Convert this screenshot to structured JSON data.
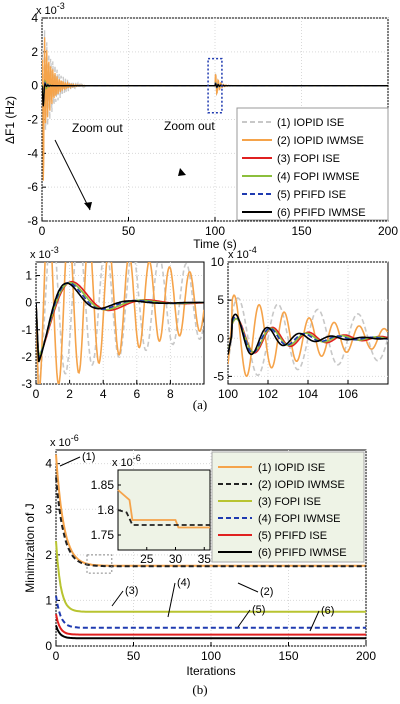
{
  "panel_a_label": "(a)",
  "panel_b_label": "(b)",
  "chart_data": [
    {
      "id": "a-main",
      "type": "line",
      "ylabel": "ΔF1 (Hz)",
      "xlabel": "Time (s)",
      "yexp": "x 10-3",
      "xlim": [
        0,
        200
      ],
      "ylim": [
        -8,
        4
      ],
      "xticks": [
        "0",
        "50",
        "100",
        "150",
        "200"
      ],
      "yticks": [
        "-8",
        "-6",
        "-4",
        "-2",
        "0",
        "2",
        "4"
      ],
      "grid": true,
      "legend_position": "right",
      "annotations": [
        "Zoom out",
        "Zoom out"
      ],
      "series": [
        {
          "name": "(1) IOPID ISE",
          "color": "#c8c8c8",
          "dash": "dashed",
          "initial_amp": 4.2,
          "decay_t": 6,
          "period": 1.2,
          "dip": -4.5
        },
        {
          "name": "(2) IOPID IWMSE",
          "color": "#f5a34a",
          "dash": "solid",
          "initial_amp": 4.0,
          "decay_t": 4.5,
          "period": 1.2,
          "dip": -5.8
        },
        {
          "name": "(3) FOPI ISE",
          "color": "#e02020",
          "dash": "solid",
          "initial_amp": 1.0,
          "decay_t": 1.5,
          "period": 1.5,
          "dip": -2.0
        },
        {
          "name": "(4) FOPI IWMSE",
          "color": "#8cbf3c",
          "dash": "solid",
          "initial_amp": 1.0,
          "decay_t": 1.5,
          "period": 1.5,
          "dip": -2.0
        },
        {
          "name": "(5) PFIFD ISE",
          "color": "#1f3ab0",
          "dash": "dashed",
          "initial_amp": 0.8,
          "decay_t": 1.2,
          "period": 1.5,
          "dip": -2.1
        },
        {
          "name": "(6) PFIFD IWMSE",
          "color": "#000000",
          "dash": "solid",
          "initial_amp": 0.6,
          "decay_t": 1.0,
          "period": 1.5,
          "dip": -2.2
        }
      ]
    },
    {
      "id": "a-zoom1",
      "type": "line",
      "yexp": "x 10-3",
      "xlim": [
        0,
        10
      ],
      "ylim": [
        -3,
        1.5
      ],
      "xticks": [
        "0",
        "2",
        "4",
        "6",
        "8"
      ],
      "yticks": [
        "-3",
        "-2",
        "-1",
        "0",
        "1"
      ],
      "grid": true,
      "series": [
        {
          "name": "(1) IOPID ISE",
          "color": "#c8c8c8",
          "dash": "dashed",
          "amp": 3.0,
          "period": 1.6,
          "decay": 12
        },
        {
          "name": "(2) IOPID IWMSE",
          "color": "#f5a34a",
          "dash": "solid",
          "amp": 3.5,
          "period": 1.2,
          "decay": 8
        },
        {
          "name": "(3) FOPI ISE",
          "color": "#e02020",
          "dash": "solid",
          "amp": 2.0,
          "period": 4.4,
          "decay": 2.2
        },
        {
          "name": "(4) FOPI IWMSE",
          "color": "#8cbf3c",
          "dash": "solid",
          "amp": 2.0,
          "period": 4.2,
          "decay": 2.0
        },
        {
          "name": "(5) PFIFD ISE",
          "color": "#1f3ab0",
          "dash": "dashed",
          "amp": 2.1,
          "period": 4.0,
          "decay": 1.8
        },
        {
          "name": "(6) PFIFD IWMSE",
          "color": "#000000",
          "dash": "solid",
          "amp": 2.2,
          "period": 3.8,
          "decay": 1.6
        }
      ]
    },
    {
      "id": "a-zoom2",
      "type": "line",
      "yexp": "x 10-4",
      "xlim": [
        100,
        108
      ],
      "ylim": [
        -6,
        10
      ],
      "xticks": [
        "100",
        "102",
        "104",
        "106"
      ],
      "yticks": [
        "-5",
        "0",
        "5",
        "10"
      ],
      "grid": true,
      "series": [
        {
          "name": "(1) IOPID ISE",
          "color": "#c8c8c8",
          "dash": "dashed",
          "amp": 5.5,
          "period": 2.0,
          "decay": 12
        },
        {
          "name": "(2) IOPID IWMSE",
          "color": "#f5a34a",
          "dash": "solid",
          "amp": 6.0,
          "period": 1.25,
          "decay": 5
        },
        {
          "name": "(3) FOPI ISE",
          "color": "#e02020",
          "dash": "solid",
          "amp": 3.0,
          "period": 1.8,
          "decay": 3.0
        },
        {
          "name": "(4) FOPI IWMSE",
          "color": "#8cbf3c",
          "dash": "solid",
          "amp": 3.0,
          "period": 1.75,
          "decay": 2.6
        },
        {
          "name": "(5) PFIFD ISE",
          "color": "#1f3ab0",
          "dash": "dashed",
          "amp": 3.4,
          "period": 1.7,
          "decay": 2.2
        },
        {
          "name": "(6) PFIFD IWMSE",
          "color": "#000000",
          "dash": "solid",
          "amp": 3.8,
          "period": 1.6,
          "decay": 2.0
        }
      ]
    },
    {
      "id": "b-main",
      "type": "line",
      "ylabel": "Minimization of J",
      "xlabel": "Iterations",
      "yexp": "x 10-6",
      "xlim": [
        0,
        200
      ],
      "ylim": [
        0,
        4.3
      ],
      "xticks": [
        "0",
        "50",
        "100",
        "150",
        "200"
      ],
      "yticks": [
        "0",
        "1",
        "2",
        "3",
        "4"
      ],
      "grid": true,
      "legend_position": "top-right",
      "callouts": [
        "(1)",
        "(2)",
        "(3)",
        "(4)",
        "(5)",
        "(6)"
      ],
      "series": [
        {
          "name": "(1) IOPID ISE",
          "color": "#f5a34a",
          "dash": "solid",
          "start": 4.2,
          "final": 1.76,
          "decay": 5
        },
        {
          "name": "(2) IOPID IWMSE",
          "color": "#222222",
          "dash": "dashed",
          "start": 3.7,
          "final": 1.75,
          "decay": 5
        },
        {
          "name": "(3) FOPI ISE",
          "color": "#b8c430",
          "dash": "solid",
          "start": 2.3,
          "final": 0.75,
          "decay": 3
        },
        {
          "name": "(4) FOPI IWMSE",
          "color": "#1f3ab0",
          "dash": "dashed",
          "start": 1.1,
          "final": 0.4,
          "decay": 3
        },
        {
          "name": "(5) PFIFD ISE",
          "color": "#e02020",
          "dash": "solid",
          "start": 0.7,
          "final": 0.25,
          "decay": 2.5
        },
        {
          "name": "(6) PFIFD IWMSE",
          "color": "#000000",
          "dash": "solid",
          "start": 0.45,
          "final": 0.17,
          "decay": 2.5
        }
      ]
    },
    {
      "id": "b-inset",
      "type": "line",
      "yexp": "x 10-6",
      "xlim": [
        20,
        36
      ],
      "ylim": [
        1.72,
        1.88
      ],
      "xticks": [
        "25",
        "30",
        "35"
      ],
      "yticks": [
        "1.75",
        "1.8",
        "1.85"
      ],
      "grid": false,
      "series": [
        {
          "name": "(1) IOPID ISE",
          "color": "#f5a34a",
          "dash": "solid",
          "points": [
            [
              20,
              1.84
            ],
            [
              22,
              1.82
            ],
            [
              22.5,
              1.78
            ],
            [
              30,
              1.78
            ],
            [
              30.5,
              1.765
            ],
            [
              36,
              1.765
            ]
          ]
        },
        {
          "name": "(2) IOPID IWMSE",
          "color": "#222222",
          "dash": "dashed",
          "points": [
            [
              20,
              1.8
            ],
            [
              21.5,
              1.795
            ],
            [
              22.5,
              1.77
            ],
            [
              36,
              1.77
            ]
          ]
        }
      ]
    }
  ]
}
